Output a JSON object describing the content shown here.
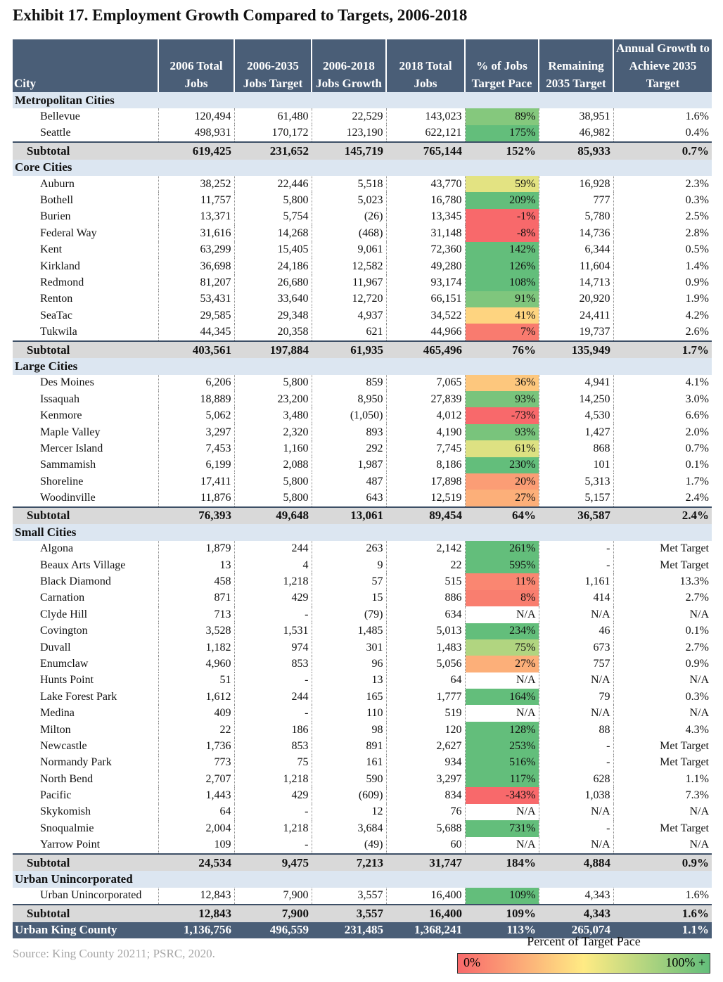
{
  "title": "Exhibit 17. Employment Growth Compared to Targets, 2006-2018",
  "columns": [
    "City",
    "2006 Total Jobs",
    "2006-2035 Jobs Target",
    "2006-2018 Jobs Growth",
    "2018 Total Jobs",
    "% of Jobs Target Pace",
    "Remaining 2035 Target",
    "Annual Growth to Achieve 2035 Target"
  ],
  "groups": [
    {
      "name": "Metropolitan Cities",
      "rows": [
        [
          "Bellevue",
          "120,494",
          "61,480",
          "22,529",
          "143,023",
          "89%",
          "38,951",
          "1.6%"
        ],
        [
          "Seattle",
          "498,931",
          "170,172",
          "123,190",
          "622,121",
          "175%",
          "46,982",
          "0.4%"
        ]
      ],
      "subtotal": [
        "Subtotal",
        "619,425",
        "231,652",
        "145,719",
        "765,144",
        "152%",
        "85,933",
        "0.7%"
      ]
    },
    {
      "name": "Core Cities",
      "rows": [
        [
          "Auburn",
          "38,252",
          "22,446",
          "5,518",
          "43,770",
          "59%",
          "16,928",
          "2.3%"
        ],
        [
          "Bothell",
          "11,757",
          "5,800",
          "5,023",
          "16,780",
          "209%",
          "777",
          "0.3%"
        ],
        [
          "Burien",
          "13,371",
          "5,754",
          "(26)",
          "13,345",
          "-1%",
          "5,780",
          "2.5%"
        ],
        [
          "Federal Way",
          "31,616",
          "14,268",
          "(468)",
          "31,148",
          "-8%",
          "14,736",
          "2.8%"
        ],
        [
          "Kent",
          "63,299",
          "15,405",
          "9,061",
          "72,360",
          "142%",
          "6,344",
          "0.5%"
        ],
        [
          "Kirkland",
          "36,698",
          "24,186",
          "12,582",
          "49,280",
          "126%",
          "11,604",
          "1.4%"
        ],
        [
          "Redmond",
          "81,207",
          "26,680",
          "11,967",
          "93,174",
          "108%",
          "14,713",
          "0.9%"
        ],
        [
          "Renton",
          "53,431",
          "33,640",
          "12,720",
          "66,151",
          "91%",
          "20,920",
          "1.9%"
        ],
        [
          "SeaTac",
          "29,585",
          "29,348",
          "4,937",
          "34,522",
          "41%",
          "24,411",
          "4.2%"
        ],
        [
          "Tukwila",
          "44,345",
          "20,358",
          "621",
          "44,966",
          "7%",
          "19,737",
          "2.6%"
        ]
      ],
      "subtotal": [
        "Subtotal",
        "403,561",
        "197,884",
        "61,935",
        "465,496",
        "76%",
        "135,949",
        "1.7%"
      ]
    },
    {
      "name": "Large Cities",
      "rows": [
        [
          "Des Moines",
          "6,206",
          "5,800",
          "859",
          "7,065",
          "36%",
          "4,941",
          "4.1%"
        ],
        [
          "Issaquah",
          "18,889",
          "23,200",
          "8,950",
          "27,839",
          "93%",
          "14,250",
          "3.0%"
        ],
        [
          "Kenmore",
          "5,062",
          "3,480",
          "(1,050)",
          "4,012",
          "-73%",
          "4,530",
          "6.6%"
        ],
        [
          "Maple Valley",
          "3,297",
          "2,320",
          "893",
          "4,190",
          "93%",
          "1,427",
          "2.0%"
        ],
        [
          "Mercer Island",
          "7,453",
          "1,160",
          "292",
          "7,745",
          "61%",
          "868",
          "0.7%"
        ],
        [
          "Sammamish",
          "6,199",
          "2,088",
          "1,987",
          "8,186",
          "230%",
          "101",
          "0.1%"
        ],
        [
          "Shoreline",
          "17,411",
          "5,800",
          "487",
          "17,898",
          "20%",
          "5,313",
          "1.7%"
        ],
        [
          "Woodinville",
          "11,876",
          "5,800",
          "643",
          "12,519",
          "27%",
          "5,157",
          "2.4%"
        ]
      ],
      "subtotal": [
        "Subtotal",
        "76,393",
        "49,648",
        "13,061",
        "89,454",
        "64%",
        "36,587",
        "2.4%"
      ]
    },
    {
      "name": "Small Cities",
      "rows": [
        [
          "Algona",
          "1,879",
          "244",
          "263",
          "2,142",
          "261%",
          "-",
          "Met Target"
        ],
        [
          "Beaux Arts Village",
          "13",
          "4",
          "9",
          "22",
          "595%",
          "-",
          "Met Target"
        ],
        [
          "Black Diamond",
          "458",
          "1,218",
          "57",
          "515",
          "11%",
          "1,161",
          "13.3%"
        ],
        [
          "Carnation",
          "871",
          "429",
          "15",
          "886",
          "8%",
          "414",
          "2.7%"
        ],
        [
          "Clyde Hill",
          "713",
          "-",
          "(79)",
          "634",
          "N/A",
          "N/A",
          "N/A"
        ],
        [
          "Covington",
          "3,528",
          "1,531",
          "1,485",
          "5,013",
          "234%",
          "46",
          "0.1%"
        ],
        [
          "Duvall",
          "1,182",
          "974",
          "301",
          "1,483",
          "75%",
          "673",
          "2.7%"
        ],
        [
          "Enumclaw",
          "4,960",
          "853",
          "96",
          "5,056",
          "27%",
          "757",
          "0.9%"
        ],
        [
          "Hunts Point",
          "51",
          "-",
          "13",
          "64",
          "N/A",
          "N/A",
          "N/A"
        ],
        [
          "Lake Forest Park",
          "1,612",
          "244",
          "165",
          "1,777",
          "164%",
          "79",
          "0.3%"
        ],
        [
          "Medina",
          "409",
          "-",
          "110",
          "519",
          "N/A",
          "N/A",
          "N/A"
        ],
        [
          "Milton",
          "22",
          "186",
          "98",
          "120",
          "128%",
          "88",
          "4.3%"
        ],
        [
          "Newcastle",
          "1,736",
          "853",
          "891",
          "2,627",
          "253%",
          "-",
          "Met Target"
        ],
        [
          "Normandy Park",
          "773",
          "75",
          "161",
          "934",
          "516%",
          "-",
          "Met Target"
        ],
        [
          "North Bend",
          "2,707",
          "1,218",
          "590",
          "3,297",
          "117%",
          "628",
          "1.1%"
        ],
        [
          "Pacific",
          "1,443",
          "429",
          "(609)",
          "834",
          "-343%",
          "1,038",
          "7.3%"
        ],
        [
          "Skykomish",
          "64",
          "-",
          "12",
          "76",
          "N/A",
          "N/A",
          "N/A"
        ],
        [
          "Snoqualmie",
          "2,004",
          "1,218",
          "3,684",
          "5,688",
          "731%",
          "-",
          "Met Target"
        ],
        [
          "Yarrow Point",
          "109",
          "-",
          "(49)",
          "60",
          "N/A",
          "N/A",
          "N/A"
        ]
      ],
      "subtotal": [
        "Subtotal",
        "24,534",
        "9,475",
        "7,213",
        "31,747",
        "184%",
        "4,884",
        "0.9%"
      ]
    },
    {
      "name": "Urban Unincorporated",
      "rows": [
        [
          "Urban Unincorporated",
          "12,843",
          "7,900",
          "3,557",
          "16,400",
          "109%",
          "4,343",
          "1.6%"
        ]
      ],
      "subtotal": [
        "Subtotal",
        "12,843",
        "7,900",
        "3,557",
        "16,400",
        "109%",
        "4,343",
        "1.6%"
      ]
    }
  ],
  "total": [
    "Urban King County",
    "1,136,756",
    "496,559",
    "231,485",
    "1,368,241",
    "113%",
    "265,074",
    "1.1%"
  ],
  "source": "Source: King County 20211; PSRC, 2020.",
  "legend": {
    "title": "Percent of Target Pace",
    "min": "0%",
    "max": "100% +"
  }
}
